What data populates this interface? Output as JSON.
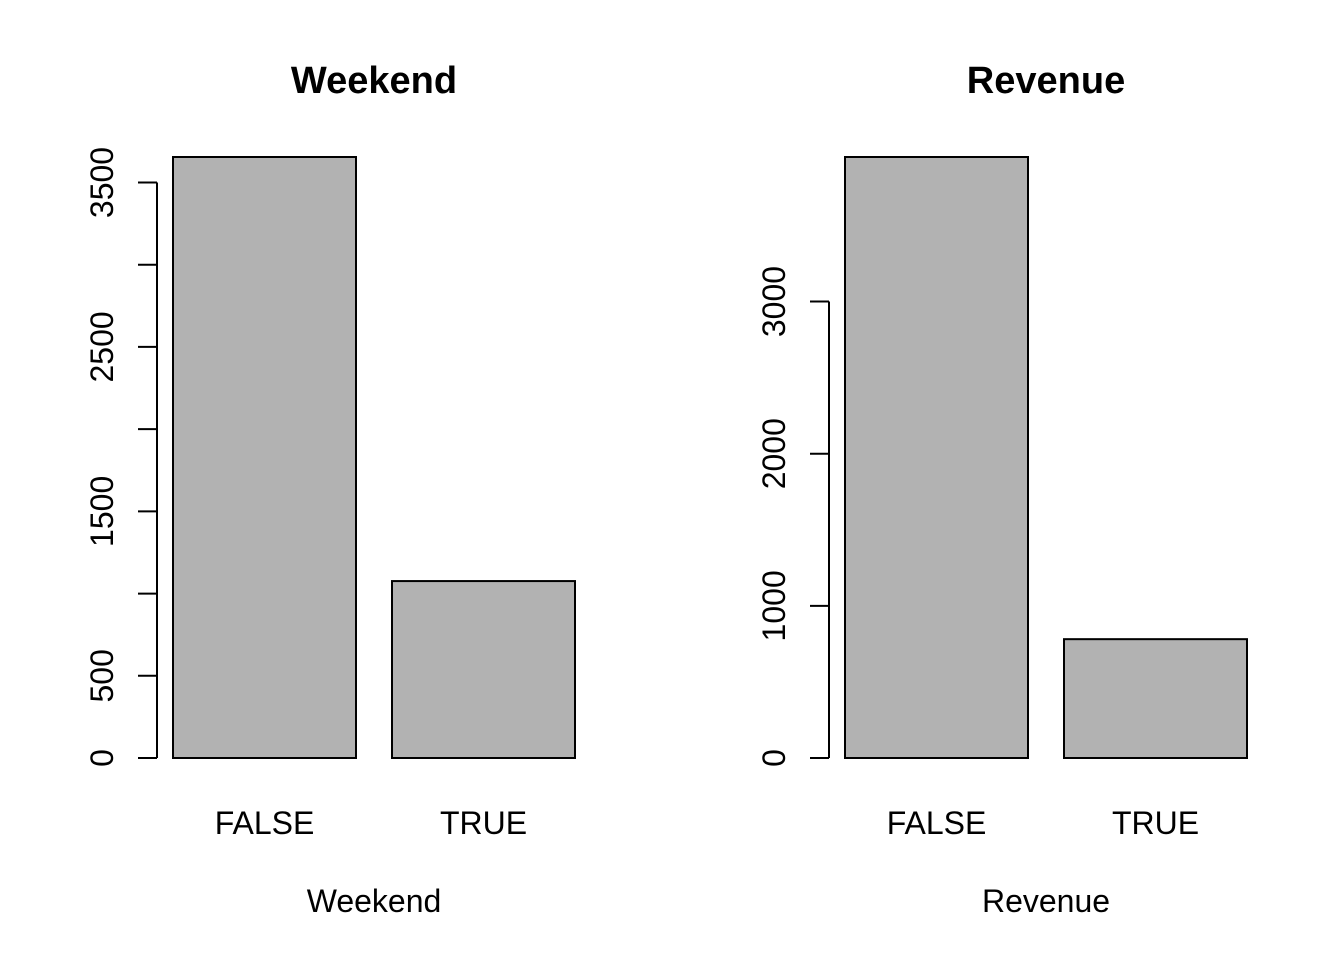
{
  "chart_data": [
    {
      "type": "bar",
      "title": "Weekend",
      "xlabel": "Weekend",
      "ylabel": "",
      "categories": [
        "FALSE",
        "TRUE"
      ],
      "values": [
        3655,
        1076
      ],
      "ylim": [
        0,
        3655
      ],
      "yticks": [
        0,
        500,
        1000,
        1500,
        2000,
        2500,
        3000,
        3500
      ],
      "yticklabels": [
        "0",
        "500",
        "",
        "1500",
        "",
        "2500",
        "",
        "3500"
      ],
      "bar_color": "#b2b2b2",
      "grid": false,
      "legend": "none"
    },
    {
      "type": "bar",
      "title": "Revenue",
      "xlabel": "Revenue",
      "ylabel": "",
      "categories": [
        "FALSE",
        "TRUE"
      ],
      "values": [
        3950,
        781
      ],
      "ylim": [
        0,
        3950
      ],
      "yticks": [
        0,
        1000,
        2000,
        3000
      ],
      "yticklabels": [
        "0",
        "1000",
        "2000",
        "3000"
      ],
      "bar_color": "#b2b2b2",
      "grid": false,
      "legend": "none"
    }
  ]
}
